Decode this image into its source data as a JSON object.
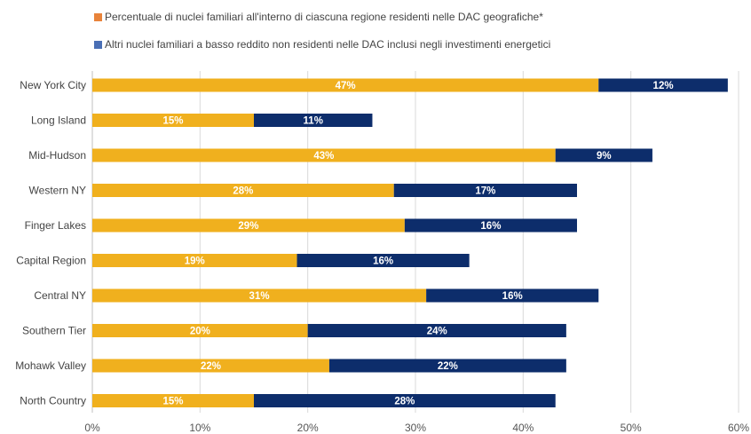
{
  "chart_data": {
    "type": "bar",
    "orientation": "horizontal",
    "stacked": true,
    "categories": [
      "New York City",
      "Long Island",
      "Mid-Hudson",
      "Western NY",
      "Finger Lakes",
      "Capital Region",
      "Central NY",
      "Southern Tier",
      "Mohawk Valley",
      "North Country"
    ],
    "series": [
      {
        "name": "Percentuale di nuclei familiari all'interno di ciascuna regione residenti nelle DAC geografiche*",
        "color": "#f0b01e",
        "values": [
          47,
          15,
          43,
          28,
          29,
          19,
          31,
          20,
          22,
          15
        ],
        "labels": [
          "47%",
          "15%",
          "43%",
          "28%",
          "29%",
          "19%",
          "31%",
          "20%",
          "22%",
          "15%"
        ]
      },
      {
        "name": "Altri nuclei familiari a basso reddito non residenti nelle DAC inclusi negli investimenti energetici",
        "color": "#0d2d6b",
        "values": [
          12,
          11,
          9,
          17,
          16,
          16,
          16,
          24,
          22,
          28
        ],
        "labels": [
          "12%",
          "11%",
          "9%",
          "17%",
          "16%",
          "16%",
          "16%",
          "24%",
          "22%",
          "28%"
        ]
      }
    ],
    "xlim": [
      0,
      60
    ],
    "xticks": [
      0,
      10,
      20,
      30,
      40,
      50,
      60
    ],
    "xtick_labels": [
      "0%",
      "10%",
      "20%",
      "30%",
      "40%",
      "50%",
      "60%"
    ],
    "grid": "vertical",
    "legend_position": "top",
    "title": "",
    "xlabel": "",
    "ylabel": ""
  }
}
